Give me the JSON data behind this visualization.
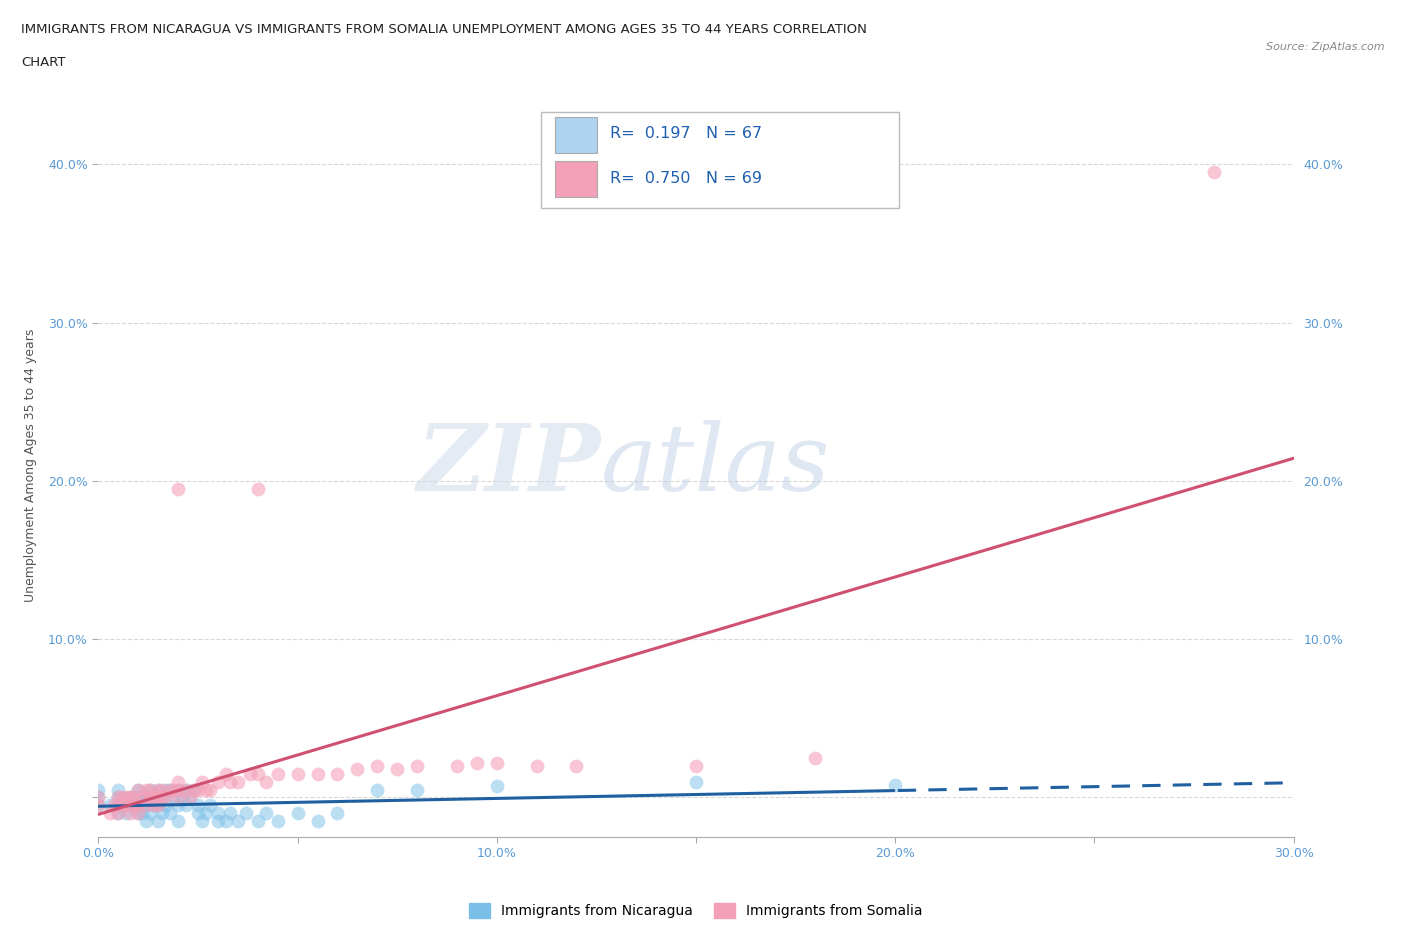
{
  "title_line1": "IMMIGRANTS FROM NICARAGUA VS IMMIGRANTS FROM SOMALIA UNEMPLOYMENT AMONG AGES 35 TO 44 YEARS CORRELATION",
  "title_line2": "CHART",
  "source": "Source: ZipAtlas.com",
  "ylabel": "Unemployment Among Ages 35 to 44 years",
  "xlim": [
    0.0,
    0.3
  ],
  "ylim": [
    -0.025,
    0.445
  ],
  "yticks": [
    0.0,
    0.1,
    0.2,
    0.3,
    0.4
  ],
  "xticks": [
    0.0,
    0.05,
    0.1,
    0.15,
    0.2,
    0.25,
    0.3
  ],
  "xtick_labels": [
    "0.0%",
    "",
    "10.0%",
    "",
    "20.0%",
    "",
    "30.0%"
  ],
  "ytick_labels_left": [
    "",
    "10.0%",
    "20.0%",
    "30.0%",
    "40.0%"
  ],
  "ytick_labels_right": [
    "",
    "10.0%",
    "20.0%",
    "30.0%",
    "40.0%"
  ],
  "nicaragua_color": "#7bbfe8",
  "nicaragua_color_light": "#aed4f0",
  "somalia_color": "#f4a0b8",
  "R_nicaragua": 0.197,
  "N_nicaragua": 67,
  "R_somalia": 0.75,
  "N_somalia": 69,
  "legend_label_nicaragua": "Immigrants from Nicaragua",
  "legend_label_somalia": "Immigrants from Somalia",
  "watermark_zip": "ZIP",
  "watermark_atlas": "atlas",
  "background_color": "#ffffff",
  "grid_color": "#d0d0d0",
  "axis_label_color": "#5b9bd5",
  "nic_line_color": "#2060a0",
  "som_line_color": "#d05070",
  "nicaragua_scatter": [
    [
      0.0,
      0.005
    ],
    [
      0.0,
      0.0
    ],
    [
      0.0,
      -0.005
    ],
    [
      0.003,
      -0.005
    ],
    [
      0.005,
      -0.01
    ],
    [
      0.005,
      0.0
    ],
    [
      0.005,
      -0.005
    ],
    [
      0.005,
      0.005
    ],
    [
      0.007,
      -0.01
    ],
    [
      0.008,
      0.0
    ],
    [
      0.008,
      -0.005
    ],
    [
      0.009,
      -0.005
    ],
    [
      0.009,
      0.0
    ],
    [
      0.01,
      -0.01
    ],
    [
      0.01,
      -0.005
    ],
    [
      0.01,
      0.0
    ],
    [
      0.01,
      0.005
    ],
    [
      0.011,
      -0.01
    ],
    [
      0.011,
      0.0
    ],
    [
      0.012,
      -0.015
    ],
    [
      0.012,
      -0.005
    ],
    [
      0.012,
      0.0
    ],
    [
      0.013,
      -0.01
    ],
    [
      0.013,
      0.0
    ],
    [
      0.013,
      0.005
    ],
    [
      0.014,
      -0.005
    ],
    [
      0.014,
      0.0
    ],
    [
      0.015,
      -0.015
    ],
    [
      0.015,
      -0.005
    ],
    [
      0.015,
      0.005
    ],
    [
      0.016,
      -0.01
    ],
    [
      0.016,
      0.0
    ],
    [
      0.017,
      -0.005
    ],
    [
      0.017,
      0.005
    ],
    [
      0.018,
      -0.01
    ],
    [
      0.018,
      0.005
    ],
    [
      0.019,
      0.0
    ],
    [
      0.02,
      -0.015
    ],
    [
      0.02,
      -0.005
    ],
    [
      0.02,
      0.005
    ],
    [
      0.021,
      0.0
    ],
    [
      0.022,
      -0.005
    ],
    [
      0.022,
      0.005
    ],
    [
      0.023,
      0.0
    ],
    [
      0.024,
      0.005
    ],
    [
      0.025,
      -0.01
    ],
    [
      0.025,
      -0.005
    ],
    [
      0.026,
      -0.015
    ],
    [
      0.027,
      -0.01
    ],
    [
      0.028,
      -0.005
    ],
    [
      0.03,
      -0.015
    ],
    [
      0.03,
      -0.01
    ],
    [
      0.032,
      -0.015
    ],
    [
      0.033,
      -0.01
    ],
    [
      0.035,
      -0.015
    ],
    [
      0.037,
      -0.01
    ],
    [
      0.04,
      -0.015
    ],
    [
      0.042,
      -0.01
    ],
    [
      0.045,
      -0.015
    ],
    [
      0.05,
      -0.01
    ],
    [
      0.055,
      -0.015
    ],
    [
      0.06,
      -0.01
    ],
    [
      0.07,
      0.005
    ],
    [
      0.08,
      0.005
    ],
    [
      0.1,
      0.007
    ],
    [
      0.15,
      0.01
    ],
    [
      0.2,
      0.008
    ]
  ],
  "somalia_scatter": [
    [
      0.0,
      -0.005
    ],
    [
      0.0,
      0.0
    ],
    [
      0.003,
      -0.01
    ],
    [
      0.004,
      -0.005
    ],
    [
      0.005,
      -0.01
    ],
    [
      0.005,
      -0.005
    ],
    [
      0.005,
      0.0
    ],
    [
      0.006,
      -0.005
    ],
    [
      0.006,
      0.0
    ],
    [
      0.007,
      -0.005
    ],
    [
      0.007,
      0.0
    ],
    [
      0.008,
      -0.01
    ],
    [
      0.008,
      -0.005
    ],
    [
      0.008,
      0.0
    ],
    [
      0.009,
      -0.005
    ],
    [
      0.009,
      0.0
    ],
    [
      0.01,
      -0.01
    ],
    [
      0.01,
      -0.005
    ],
    [
      0.01,
      0.005
    ],
    [
      0.011,
      0.0
    ],
    [
      0.012,
      -0.005
    ],
    [
      0.012,
      0.005
    ],
    [
      0.013,
      0.0
    ],
    [
      0.013,
      0.005
    ],
    [
      0.014,
      -0.005
    ],
    [
      0.014,
      0.0
    ],
    [
      0.015,
      -0.005
    ],
    [
      0.015,
      0.0
    ],
    [
      0.015,
      0.005
    ],
    [
      0.016,
      0.0
    ],
    [
      0.016,
      0.005
    ],
    [
      0.017,
      0.0
    ],
    [
      0.018,
      0.005
    ],
    [
      0.019,
      0.005
    ],
    [
      0.02,
      0.0
    ],
    [
      0.02,
      0.005
    ],
    [
      0.02,
      0.01
    ],
    [
      0.022,
      0.005
    ],
    [
      0.023,
      0.0
    ],
    [
      0.024,
      0.005
    ],
    [
      0.025,
      0.005
    ],
    [
      0.026,
      0.01
    ],
    [
      0.027,
      0.005
    ],
    [
      0.028,
      0.005
    ],
    [
      0.03,
      0.01
    ],
    [
      0.032,
      0.015
    ],
    [
      0.033,
      0.01
    ],
    [
      0.035,
      0.01
    ],
    [
      0.038,
      0.015
    ],
    [
      0.04,
      0.015
    ],
    [
      0.042,
      0.01
    ],
    [
      0.045,
      0.015
    ],
    [
      0.05,
      0.015
    ],
    [
      0.055,
      0.015
    ],
    [
      0.06,
      0.015
    ],
    [
      0.065,
      0.018
    ],
    [
      0.07,
      0.02
    ],
    [
      0.075,
      0.018
    ],
    [
      0.08,
      0.02
    ],
    [
      0.09,
      0.02
    ],
    [
      0.095,
      0.022
    ],
    [
      0.1,
      0.022
    ],
    [
      0.11,
      0.02
    ],
    [
      0.12,
      0.02
    ],
    [
      0.15,
      0.02
    ],
    [
      0.18,
      0.025
    ],
    [
      0.02,
      0.195
    ],
    [
      0.04,
      0.195
    ],
    [
      0.28,
      0.395
    ]
  ]
}
